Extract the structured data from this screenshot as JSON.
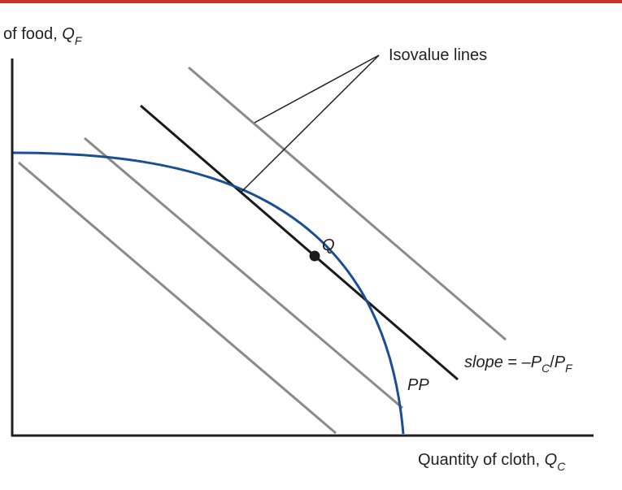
{
  "colors": {
    "top_rule": "#c9312c",
    "axis": "#231f20",
    "isovalue_gray": "#8a8a8a",
    "tangent_line": "#1a1a1a",
    "frontier": "#1a4f93",
    "point": "#1a1a1a"
  },
  "labels": {
    "y_axis": {
      "prefix": "of food, ",
      "var": "Q",
      "sub": "F"
    },
    "x_axis": {
      "prefix": "Quantity of cloth, ",
      "var": "Q",
      "sub": "C"
    },
    "isovalue": "Isovalue lines",
    "point": "Q",
    "frontier": "PP",
    "slope": {
      "word": "slope",
      "eq": " = –",
      "p1": "P",
      "s1": "C",
      "slash": "/",
      "p2": "P",
      "s2": "F"
    }
  }
}
